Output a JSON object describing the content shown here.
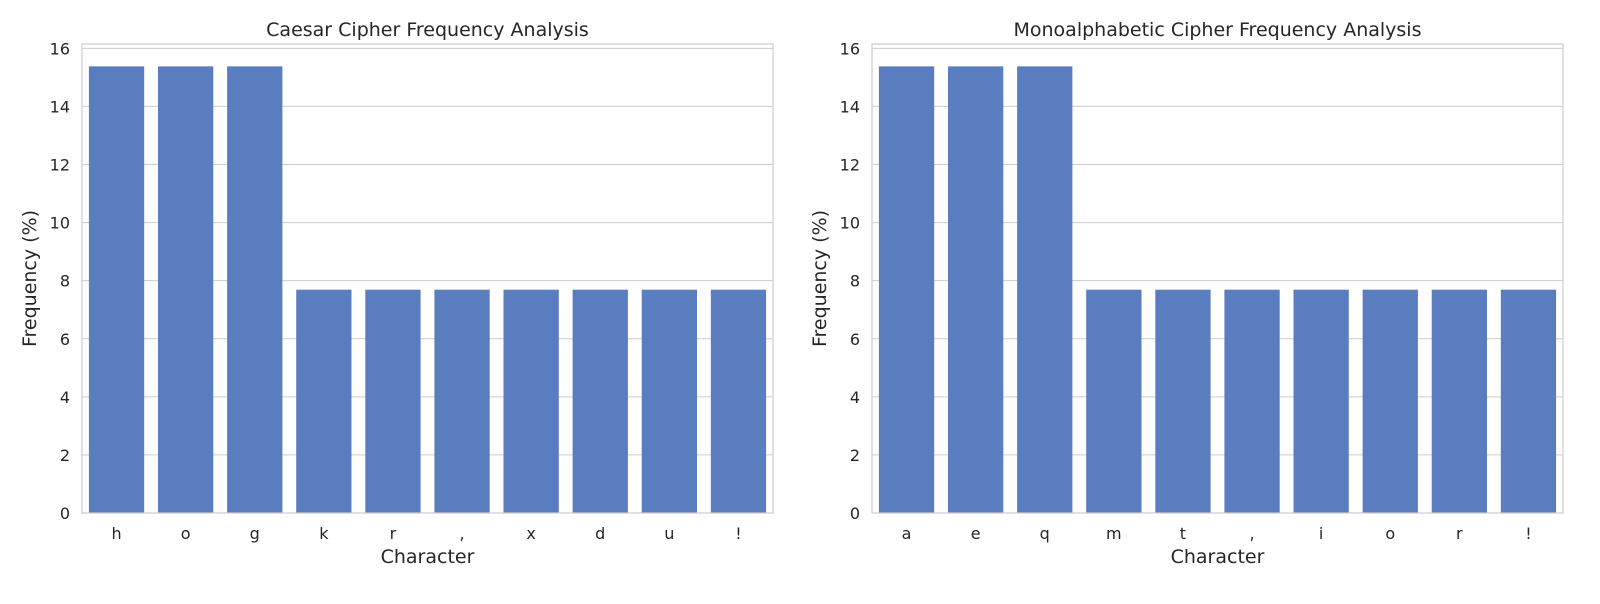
{
  "colors": {
    "bar": "#5a7dc0",
    "grid": "#cccccc",
    "background": "#ffffff"
  },
  "chart_data": [
    {
      "type": "bar",
      "title": "Caesar Cipher Frequency Analysis",
      "xlabel": "Character",
      "ylabel": "Frequency (%)",
      "categories": [
        "h",
        "o",
        "g",
        "k",
        "r",
        ",",
        "x",
        "d",
        "u",
        "!"
      ],
      "values": [
        15.38,
        15.38,
        15.38,
        7.69,
        7.69,
        7.69,
        7.69,
        7.69,
        7.69,
        7.69
      ],
      "ylim": [
        0,
        16.15
      ],
      "yticks": [
        0,
        2,
        4,
        6,
        8,
        10,
        12,
        14,
        16
      ],
      "grid": "horizontal"
    },
    {
      "type": "bar",
      "title": "Monoalphabetic Cipher Frequency Analysis",
      "xlabel": "Character",
      "ylabel": "Frequency (%)",
      "categories": [
        "a",
        "e",
        "q",
        "m",
        "t",
        ",",
        "i",
        "o",
        "r",
        "!"
      ],
      "values": [
        15.38,
        15.38,
        15.38,
        7.69,
        7.69,
        7.69,
        7.69,
        7.69,
        7.69,
        7.69
      ],
      "ylim": [
        0,
        16.15
      ],
      "yticks": [
        0,
        2,
        4,
        6,
        8,
        10,
        12,
        14,
        16
      ],
      "grid": "horizontal"
    }
  ]
}
